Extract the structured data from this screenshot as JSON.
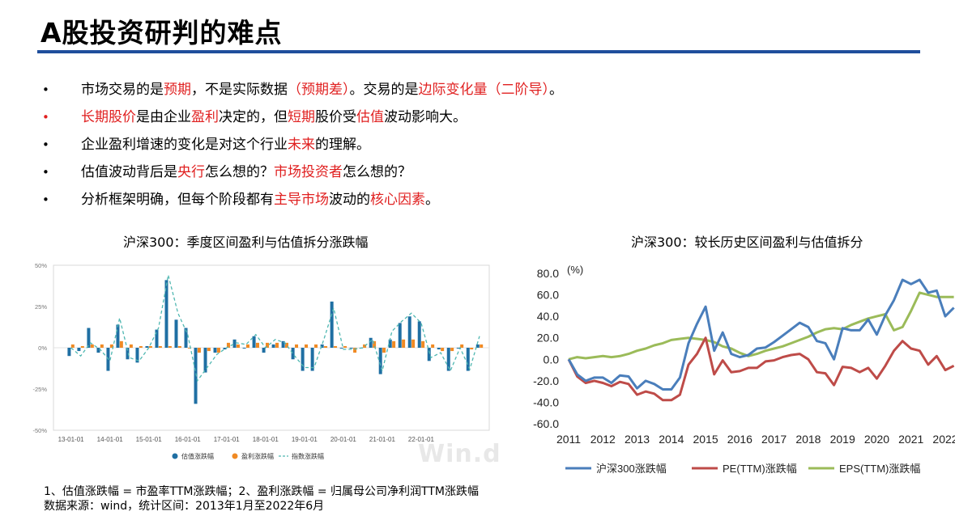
{
  "page": {
    "title": "A股投资研判的难点"
  },
  "bullets": [
    {
      "dot": "•",
      "red_dot": false,
      "parts": [
        {
          "t": "市场交易的是",
          "hl": false
        },
        {
          "t": "预期",
          "hl": true
        },
        {
          "t": "，不是实际数据",
          "hl": false
        },
        {
          "t": "（预期差）",
          "hl": true
        },
        {
          "t": "。交易的是",
          "hl": false
        },
        {
          "t": "边际变化量（二阶导）",
          "hl": true
        },
        {
          "t": "。",
          "hl": false
        }
      ]
    },
    {
      "dot": "•",
      "red_dot": true,
      "parts": [
        {
          "t": "长期股价",
          "hl": true
        },
        {
          "t": "是由企业",
          "hl": false
        },
        {
          "t": "盈利",
          "hl": true
        },
        {
          "t": "决定的，但",
          "hl": false
        },
        {
          "t": "短期",
          "hl": true
        },
        {
          "t": "股价受",
          "hl": false
        },
        {
          "t": "估值",
          "hl": true
        },
        {
          "t": "波动影响大。",
          "hl": false
        }
      ]
    },
    {
      "dot": "•",
      "red_dot": false,
      "parts": [
        {
          "t": "企业盈利增速的变化是对这个行业",
          "hl": false
        },
        {
          "t": "未来",
          "hl": true
        },
        {
          "t": "的理解。",
          "hl": false
        }
      ]
    },
    {
      "dot": "•",
      "red_dot": false,
      "parts": [
        {
          "t": "估值波动背后是",
          "hl": false
        },
        {
          "t": "央行",
          "hl": true
        },
        {
          "t": "怎么想的？",
          "hl": false
        },
        {
          "t": "市场投资者",
          "hl": true
        },
        {
          "t": "怎么想的？",
          "hl": false
        }
      ]
    },
    {
      "dot": "•",
      "red_dot": false,
      "parts": [
        {
          "t": "分析框架明确，但每个阶段都有",
          "hl": false
        },
        {
          "t": "主导市场",
          "hl": true
        },
        {
          "t": "波动的",
          "hl": false
        },
        {
          "t": "核心因素",
          "hl": true
        },
        {
          "t": "。",
          "hl": false
        }
      ]
    }
  ],
  "charts": {
    "left_title": "沪深300：季度区间盈利与估值拆分涨跌幅",
    "right_title": "沪深300：较长历史区间盈利与估值拆分"
  },
  "footnotes": {
    "line1": "1、估值涨跌幅 = 市盈率TTM涨跌幅；2、盈利涨跌幅 = 归属母公司净利润TTM涨跌幅",
    "line2": "数据来源：wind，统计区间：2013年1月至2022年6月"
  },
  "watermark": "Win.d",
  "colors": {
    "accent_rule": "#1f4e9c",
    "highlight": "#e02020",
    "valuation": "#1f6fa3",
    "earnings": "#f08a24",
    "index": "#4fb7b1",
    "hs300": "#4a7ebb",
    "pe": "#be4b48",
    "eps": "#9bbb59"
  },
  "chart_data": [
    {
      "type": "bar",
      "title": "沪深300：季度区间盈利与估值拆分涨跌幅",
      "y_ticks": [
        "50%",
        "25%",
        "0%",
        "-25%",
        "-50%"
      ],
      "ylim": [
        -50,
        50
      ],
      "x_ticks": [
        "13-01-01",
        "14-01-01",
        "15-01-01",
        "16-01-01",
        "17-01-01",
        "18-01-01",
        "19-01-01",
        "20-01-01",
        "21-01-01",
        "22-01-01"
      ],
      "x_start": 2013.0,
      "x_end": 2022.5,
      "legend": [
        "估值涨跌幅",
        "盈利涨跌幅",
        "指数涨跌幅"
      ],
      "legend_position": "bottom",
      "grid": false,
      "series": [
        {
          "name": "估值涨跌幅",
          "values": [
            -5,
            -2,
            12,
            -3,
            -14,
            14,
            -7,
            -9,
            1,
            11,
            41,
            17,
            12,
            -34,
            -15,
            -3,
            -1,
            5,
            0,
            7,
            -3,
            2,
            4,
            -7,
            -14,
            -14,
            2,
            28,
            0,
            0,
            0,
            6,
            -16,
            5,
            15,
            19,
            16,
            -8,
            -1,
            -14,
            0,
            -14,
            2
          ],
          "x": [
            2013.0,
            2013.25,
            2013.5,
            2013.75,
            2014.0,
            2014.25,
            2014.5,
            2014.75,
            2015.0,
            2015.25,
            2015.5,
            2015.75,
            2016.0,
            2016.25,
            2016.5,
            2016.75,
            2017.0,
            2017.25,
            2017.5,
            2017.75,
            2018.0,
            2018.25,
            2018.5,
            2018.75,
            2019.0,
            2019.25,
            2019.5,
            2019.75,
            2020.0,
            2020.25,
            2020.5,
            2020.75,
            2021.0,
            2021.25,
            2021.5,
            2021.75,
            2022.0,
            2022.25,
            2022.5,
            2022.75,
            2023.0,
            2023.25,
            2023.5
          ]
        },
        {
          "name": "盈利涨跌幅",
          "values": [
            2,
            1,
            2,
            2,
            2,
            4,
            2,
            1,
            1,
            1,
            1,
            1,
            0,
            -3,
            -2,
            -3,
            3,
            2,
            2,
            3,
            3,
            3,
            3,
            2,
            2,
            2,
            1,
            1,
            1,
            -3,
            2,
            4,
            -3,
            4,
            5,
            5,
            4,
            2,
            -2,
            -2,
            2,
            -1,
            2
          ],
          "x": [
            2013.0,
            2013.25,
            2013.5,
            2013.75,
            2014.0,
            2014.25,
            2014.5,
            2014.75,
            2015.0,
            2015.25,
            2015.5,
            2015.75,
            2016.0,
            2016.25,
            2016.5,
            2016.75,
            2017.0,
            2017.25,
            2017.5,
            2017.75,
            2018.0,
            2018.25,
            2018.5,
            2018.75,
            2019.0,
            2019.25,
            2019.5,
            2019.75,
            2020.0,
            2020.25,
            2020.5,
            2020.75,
            2021.0,
            2021.25,
            2021.5,
            2021.75,
            2022.0,
            2022.25,
            2022.5,
            2022.75,
            2023.0,
            2023.25,
            2023.5
          ]
        },
        {
          "name": "指数涨跌幅",
          "values": [
            0,
            -5,
            3,
            -1,
            -8,
            18,
            -6,
            -8,
            0,
            12,
            44,
            21,
            8,
            -20,
            -12,
            -4,
            0,
            3,
            2,
            8,
            0,
            5,
            3,
            -5,
            -12,
            -12,
            5,
            24,
            -1,
            -1,
            0,
            5,
            -14,
            10,
            16,
            21,
            15,
            -6,
            -3,
            -14,
            0,
            -13,
            7
          ],
          "x": [
            2013.0,
            2013.25,
            2013.5,
            2013.75,
            2014.0,
            2014.25,
            2014.5,
            2014.75,
            2015.0,
            2015.25,
            2015.5,
            2015.75,
            2016.0,
            2016.25,
            2016.5,
            2016.75,
            2017.0,
            2017.25,
            2017.5,
            2017.75,
            2018.0,
            2018.25,
            2018.5,
            2018.75,
            2019.0,
            2019.25,
            2019.5,
            2019.75,
            2020.0,
            2020.25,
            2020.5,
            2020.75,
            2021.0,
            2021.25,
            2021.5,
            2021.75,
            2022.0,
            2022.25,
            2022.5,
            2022.75,
            2023.0,
            2023.25,
            2023.5
          ]
        }
      ]
    },
    {
      "type": "line",
      "title": "沪深300：较长历史区间盈利与估值拆分",
      "ylabel": "(%)",
      "ylim": [
        -60,
        80
      ],
      "y_ticks": [
        "80.0",
        "60.0",
        "40.0",
        "20.0",
        "0.0",
        "-20.0",
        "-40.0",
        "-60.0"
      ],
      "x_ticks": [
        "2011",
        "2012",
        "2013",
        "2014",
        "2015",
        "2016",
        "2017",
        "2018",
        "2019",
        "2020",
        "2021",
        "2022"
      ],
      "legend": [
        "沪深300涨跌幅",
        "PE(TTM)涨跌幅",
        "EPS(TTM)涨跌幅"
      ],
      "legend_position": "bottom",
      "grid": false,
      "series": [
        {
          "name": "沪深300涨跌幅",
          "x": [
            2011.0,
            2011.25,
            2011.5,
            2011.75,
            2012.0,
            2012.25,
            2012.5,
            2012.75,
            2013.0,
            2013.25,
            2013.5,
            2013.75,
            2014.0,
            2014.25,
            2014.5,
            2014.75,
            2015.0,
            2015.25,
            2015.5,
            2015.75,
            2016.0,
            2016.25,
            2016.5,
            2016.75,
            2017.0,
            2017.25,
            2017.5,
            2017.75,
            2018.0,
            2018.25,
            2018.5,
            2018.75,
            2019.0,
            2019.25,
            2019.5,
            2019.75,
            2020.0,
            2020.25,
            2020.5,
            2020.75,
            2021.0,
            2021.25,
            2021.5,
            2021.75,
            2022.0,
            2022.25
          ],
          "values": [
            0,
            -14,
            -20,
            -17,
            -17,
            -22,
            -15,
            -16,
            -27,
            -20,
            -23,
            -28,
            -28,
            -17,
            15,
            33,
            49,
            8,
            25,
            5,
            2,
            4,
            10,
            11,
            16,
            22,
            28,
            34,
            30,
            17,
            15,
            0,
            29,
            27,
            27,
            37,
            23,
            41,
            55,
            74,
            70,
            74,
            62,
            64,
            40,
            48
          ]
        },
        {
          "name": "PE(TTM)涨跌幅",
          "x": [
            2011.0,
            2011.25,
            2011.5,
            2011.75,
            2012.0,
            2012.25,
            2012.5,
            2012.75,
            2013.0,
            2013.25,
            2013.5,
            2013.75,
            2014.0,
            2014.25,
            2014.5,
            2014.75,
            2015.0,
            2015.25,
            2015.5,
            2015.75,
            2016.0,
            2016.25,
            2016.5,
            2016.75,
            2017.0,
            2017.25,
            2017.5,
            2017.75,
            2018.0,
            2018.25,
            2018.5,
            2018.75,
            2019.0,
            2019.25,
            2019.5,
            2019.75,
            2020.0,
            2020.25,
            2020.5,
            2020.75,
            2021.0,
            2021.25,
            2021.5,
            2021.75,
            2022.0,
            2022.25
          ],
          "values": [
            0,
            -16,
            -22,
            -20,
            -22,
            -25,
            -21,
            -23,
            -33,
            -30,
            -32,
            -38,
            -38,
            -33,
            -5,
            5,
            20,
            -14,
            -1,
            -12,
            -11,
            -8,
            -8,
            -2,
            -1,
            2,
            4,
            5,
            0,
            -12,
            -13,
            -24,
            -7,
            -8,
            -12,
            -8,
            -18,
            -6,
            8,
            17,
            10,
            8,
            -5,
            3,
            -10,
            -6
          ]
        },
        {
          "name": "EPS(TTM)涨跌幅",
          "x": [
            2011.0,
            2011.25,
            2011.5,
            2011.75,
            2012.0,
            2012.25,
            2012.5,
            2012.75,
            2013.0,
            2013.25,
            2013.5,
            2013.75,
            2014.0,
            2014.25,
            2014.5,
            2014.75,
            2015.0,
            2015.25,
            2015.5,
            2015.75,
            2016.0,
            2016.25,
            2016.5,
            2016.75,
            2017.0,
            2017.25,
            2017.5,
            2017.75,
            2018.0,
            2018.25,
            2018.5,
            2018.75,
            2019.0,
            2019.25,
            2019.5,
            2019.75,
            2020.0,
            2020.25,
            2020.5,
            2020.75,
            2021.0,
            2021.25,
            2021.5,
            2021.75,
            2022.0,
            2022.25
          ],
          "values": [
            0,
            2,
            1,
            2,
            3,
            2,
            3,
            5,
            8,
            10,
            13,
            15,
            18,
            19,
            20,
            19,
            18,
            16,
            12,
            10,
            6,
            3,
            5,
            8,
            10,
            12,
            15,
            18,
            21,
            25,
            28,
            29,
            28,
            32,
            35,
            38,
            40,
            42,
            27,
            30,
            45,
            62,
            60,
            58,
            58,
            58
          ]
        }
      ]
    }
  ]
}
